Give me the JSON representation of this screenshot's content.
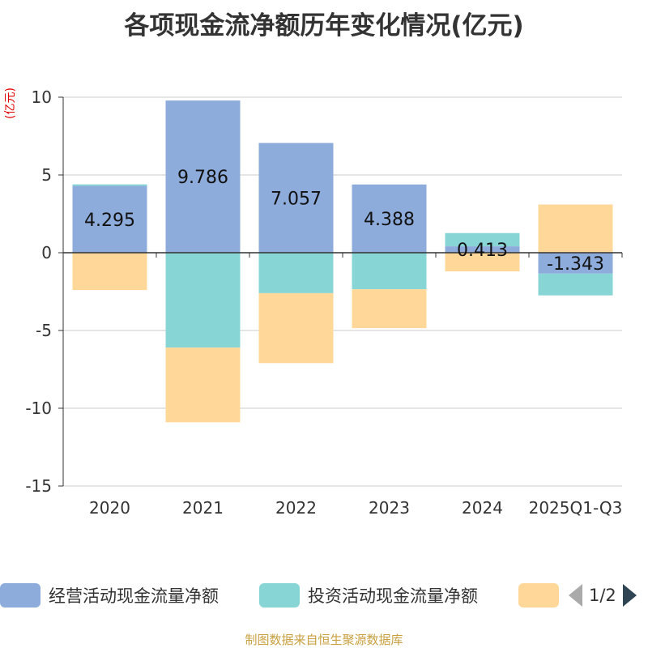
{
  "title": "各项现金流净额历年变化情况(亿元)",
  "unit_label": "(亿元)",
  "source": "制图数据来自恒生聚源数据库",
  "pager": "1/2",
  "colors": {
    "operating": "#8eacdb",
    "investing": "#88d5d6",
    "financing": "#ffd899",
    "axis": "#333333",
    "grid": "#cccccc"
  },
  "chart_data": {
    "type": "bar",
    "stacked": true,
    "title": "各项现金流净额历年变化情况(亿元)",
    "ylabel": "(亿元)",
    "ylim": [
      -15,
      10
    ],
    "yticks": [
      10,
      5,
      0,
      -5,
      -10,
      -15
    ],
    "categories": [
      "2020",
      "2021",
      "2022",
      "2023",
      "2024",
      "2025Q1-Q3"
    ],
    "series": [
      {
        "name": "经营活动现金流量净额",
        "values": [
          4.295,
          9.786,
          7.057,
          4.388,
          0.413,
          -1.343
        ],
        "labels": [
          "4.295",
          "9.786",
          "7.057",
          "4.388",
          "0.413",
          "-1.343"
        ]
      },
      {
        "name": "投资活动现金流量净额",
        "values": [
          0.1,
          -6.1,
          -2.6,
          -2.35,
          0.85,
          -1.4
        ]
      },
      {
        "name": "",
        "values": [
          -2.4,
          -4.8,
          -4.5,
          -2.5,
          -1.2,
          3.1
        ]
      }
    ],
    "legend": [
      "经营活动现金流量净额",
      "投资活动现金流量净额",
      ""
    ]
  }
}
